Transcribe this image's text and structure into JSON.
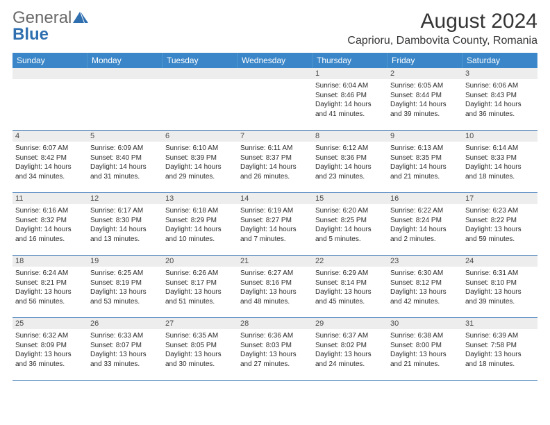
{
  "brand": {
    "general": "General",
    "blue": "Blue",
    "accent_color": "#2f6fb0"
  },
  "title": "August 2024",
  "location": "Caprioru, Dambovita County, Romania",
  "colors": {
    "header_bg": "#3a86c8",
    "header_text": "#ffffff",
    "daynum_bg": "#ededed",
    "border": "#2f6fb0",
    "text": "#2b2b2b",
    "background": "#ffffff"
  },
  "typography": {
    "body_pt": 10,
    "title_pt": 30,
    "location_pt": 16,
    "dow_pt": 12
  },
  "days_of_week": [
    "Sunday",
    "Monday",
    "Tuesday",
    "Wednesday",
    "Thursday",
    "Friday",
    "Saturday"
  ],
  "leading_blanks": 4,
  "days": [
    {
      "n": 1,
      "sunrise": "6:04 AM",
      "sunset": "8:46 PM",
      "daylight": "14 hours and 41 minutes."
    },
    {
      "n": 2,
      "sunrise": "6:05 AM",
      "sunset": "8:44 PM",
      "daylight": "14 hours and 39 minutes."
    },
    {
      "n": 3,
      "sunrise": "6:06 AM",
      "sunset": "8:43 PM",
      "daylight": "14 hours and 36 minutes."
    },
    {
      "n": 4,
      "sunrise": "6:07 AM",
      "sunset": "8:42 PM",
      "daylight": "14 hours and 34 minutes."
    },
    {
      "n": 5,
      "sunrise": "6:09 AM",
      "sunset": "8:40 PM",
      "daylight": "14 hours and 31 minutes."
    },
    {
      "n": 6,
      "sunrise": "6:10 AM",
      "sunset": "8:39 PM",
      "daylight": "14 hours and 29 minutes."
    },
    {
      "n": 7,
      "sunrise": "6:11 AM",
      "sunset": "8:37 PM",
      "daylight": "14 hours and 26 minutes."
    },
    {
      "n": 8,
      "sunrise": "6:12 AM",
      "sunset": "8:36 PM",
      "daylight": "14 hours and 23 minutes."
    },
    {
      "n": 9,
      "sunrise": "6:13 AM",
      "sunset": "8:35 PM",
      "daylight": "14 hours and 21 minutes."
    },
    {
      "n": 10,
      "sunrise": "6:14 AM",
      "sunset": "8:33 PM",
      "daylight": "14 hours and 18 minutes."
    },
    {
      "n": 11,
      "sunrise": "6:16 AM",
      "sunset": "8:32 PM",
      "daylight": "14 hours and 16 minutes."
    },
    {
      "n": 12,
      "sunrise": "6:17 AM",
      "sunset": "8:30 PM",
      "daylight": "14 hours and 13 minutes."
    },
    {
      "n": 13,
      "sunrise": "6:18 AM",
      "sunset": "8:29 PM",
      "daylight": "14 hours and 10 minutes."
    },
    {
      "n": 14,
      "sunrise": "6:19 AM",
      "sunset": "8:27 PM",
      "daylight": "14 hours and 7 minutes."
    },
    {
      "n": 15,
      "sunrise": "6:20 AM",
      "sunset": "8:25 PM",
      "daylight": "14 hours and 5 minutes."
    },
    {
      "n": 16,
      "sunrise": "6:22 AM",
      "sunset": "8:24 PM",
      "daylight": "14 hours and 2 minutes."
    },
    {
      "n": 17,
      "sunrise": "6:23 AM",
      "sunset": "8:22 PM",
      "daylight": "13 hours and 59 minutes."
    },
    {
      "n": 18,
      "sunrise": "6:24 AM",
      "sunset": "8:21 PM",
      "daylight": "13 hours and 56 minutes."
    },
    {
      "n": 19,
      "sunrise": "6:25 AM",
      "sunset": "8:19 PM",
      "daylight": "13 hours and 53 minutes."
    },
    {
      "n": 20,
      "sunrise": "6:26 AM",
      "sunset": "8:17 PM",
      "daylight": "13 hours and 51 minutes."
    },
    {
      "n": 21,
      "sunrise": "6:27 AM",
      "sunset": "8:16 PM",
      "daylight": "13 hours and 48 minutes."
    },
    {
      "n": 22,
      "sunrise": "6:29 AM",
      "sunset": "8:14 PM",
      "daylight": "13 hours and 45 minutes."
    },
    {
      "n": 23,
      "sunrise": "6:30 AM",
      "sunset": "8:12 PM",
      "daylight": "13 hours and 42 minutes."
    },
    {
      "n": 24,
      "sunrise": "6:31 AM",
      "sunset": "8:10 PM",
      "daylight": "13 hours and 39 minutes."
    },
    {
      "n": 25,
      "sunrise": "6:32 AM",
      "sunset": "8:09 PM",
      "daylight": "13 hours and 36 minutes."
    },
    {
      "n": 26,
      "sunrise": "6:33 AM",
      "sunset": "8:07 PM",
      "daylight": "13 hours and 33 minutes."
    },
    {
      "n": 27,
      "sunrise": "6:35 AM",
      "sunset": "8:05 PM",
      "daylight": "13 hours and 30 minutes."
    },
    {
      "n": 28,
      "sunrise": "6:36 AM",
      "sunset": "8:03 PM",
      "daylight": "13 hours and 27 minutes."
    },
    {
      "n": 29,
      "sunrise": "6:37 AM",
      "sunset": "8:02 PM",
      "daylight": "13 hours and 24 minutes."
    },
    {
      "n": 30,
      "sunrise": "6:38 AM",
      "sunset": "8:00 PM",
      "daylight": "13 hours and 21 minutes."
    },
    {
      "n": 31,
      "sunrise": "6:39 AM",
      "sunset": "7:58 PM",
      "daylight": "13 hours and 18 minutes."
    }
  ],
  "labels": {
    "sunrise": "Sunrise:",
    "sunset": "Sunset:",
    "daylight": "Daylight:"
  }
}
